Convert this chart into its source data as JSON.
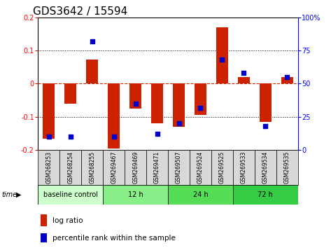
{
  "title": "GDS3642 / 15594",
  "samples": [
    "GSM268253",
    "GSM268254",
    "GSM268255",
    "GSM269467",
    "GSM269469",
    "GSM269471",
    "GSM269507",
    "GSM269524",
    "GSM269525",
    "GSM269533",
    "GSM269534",
    "GSM269535"
  ],
  "log_ratio": [
    -0.165,
    -0.06,
    0.072,
    -0.195,
    -0.075,
    -0.12,
    -0.13,
    -0.095,
    0.17,
    0.02,
    -0.115,
    0.02
  ],
  "percentile": [
    10,
    10,
    82,
    10,
    35,
    12,
    20,
    32,
    68,
    58,
    18,
    55
  ],
  "groups": [
    {
      "label": "baseline control",
      "start": 0,
      "end": 3,
      "color": "#ccffcc"
    },
    {
      "label": "12 h",
      "start": 3,
      "end": 6,
      "color": "#88ee88"
    },
    {
      "label": "24 h",
      "start": 6,
      "end": 9,
      "color": "#55dd55"
    },
    {
      "label": "72 h",
      "start": 9,
      "end": 12,
      "color": "#33cc44"
    }
  ],
  "ylim": [
    -0.2,
    0.2
  ],
  "ylim_right": [
    0,
    100
  ],
  "bar_color": "#cc2200",
  "dot_color": "#0000cc",
  "bg_color": "#ffffff",
  "plot_bg_color": "#ffffff",
  "grid_color": "#000000",
  "zero_line_color": "#cc2200",
  "title_fontsize": 11,
  "tick_fontsize": 7,
  "bar_width": 0.55,
  "dot_size": 20
}
